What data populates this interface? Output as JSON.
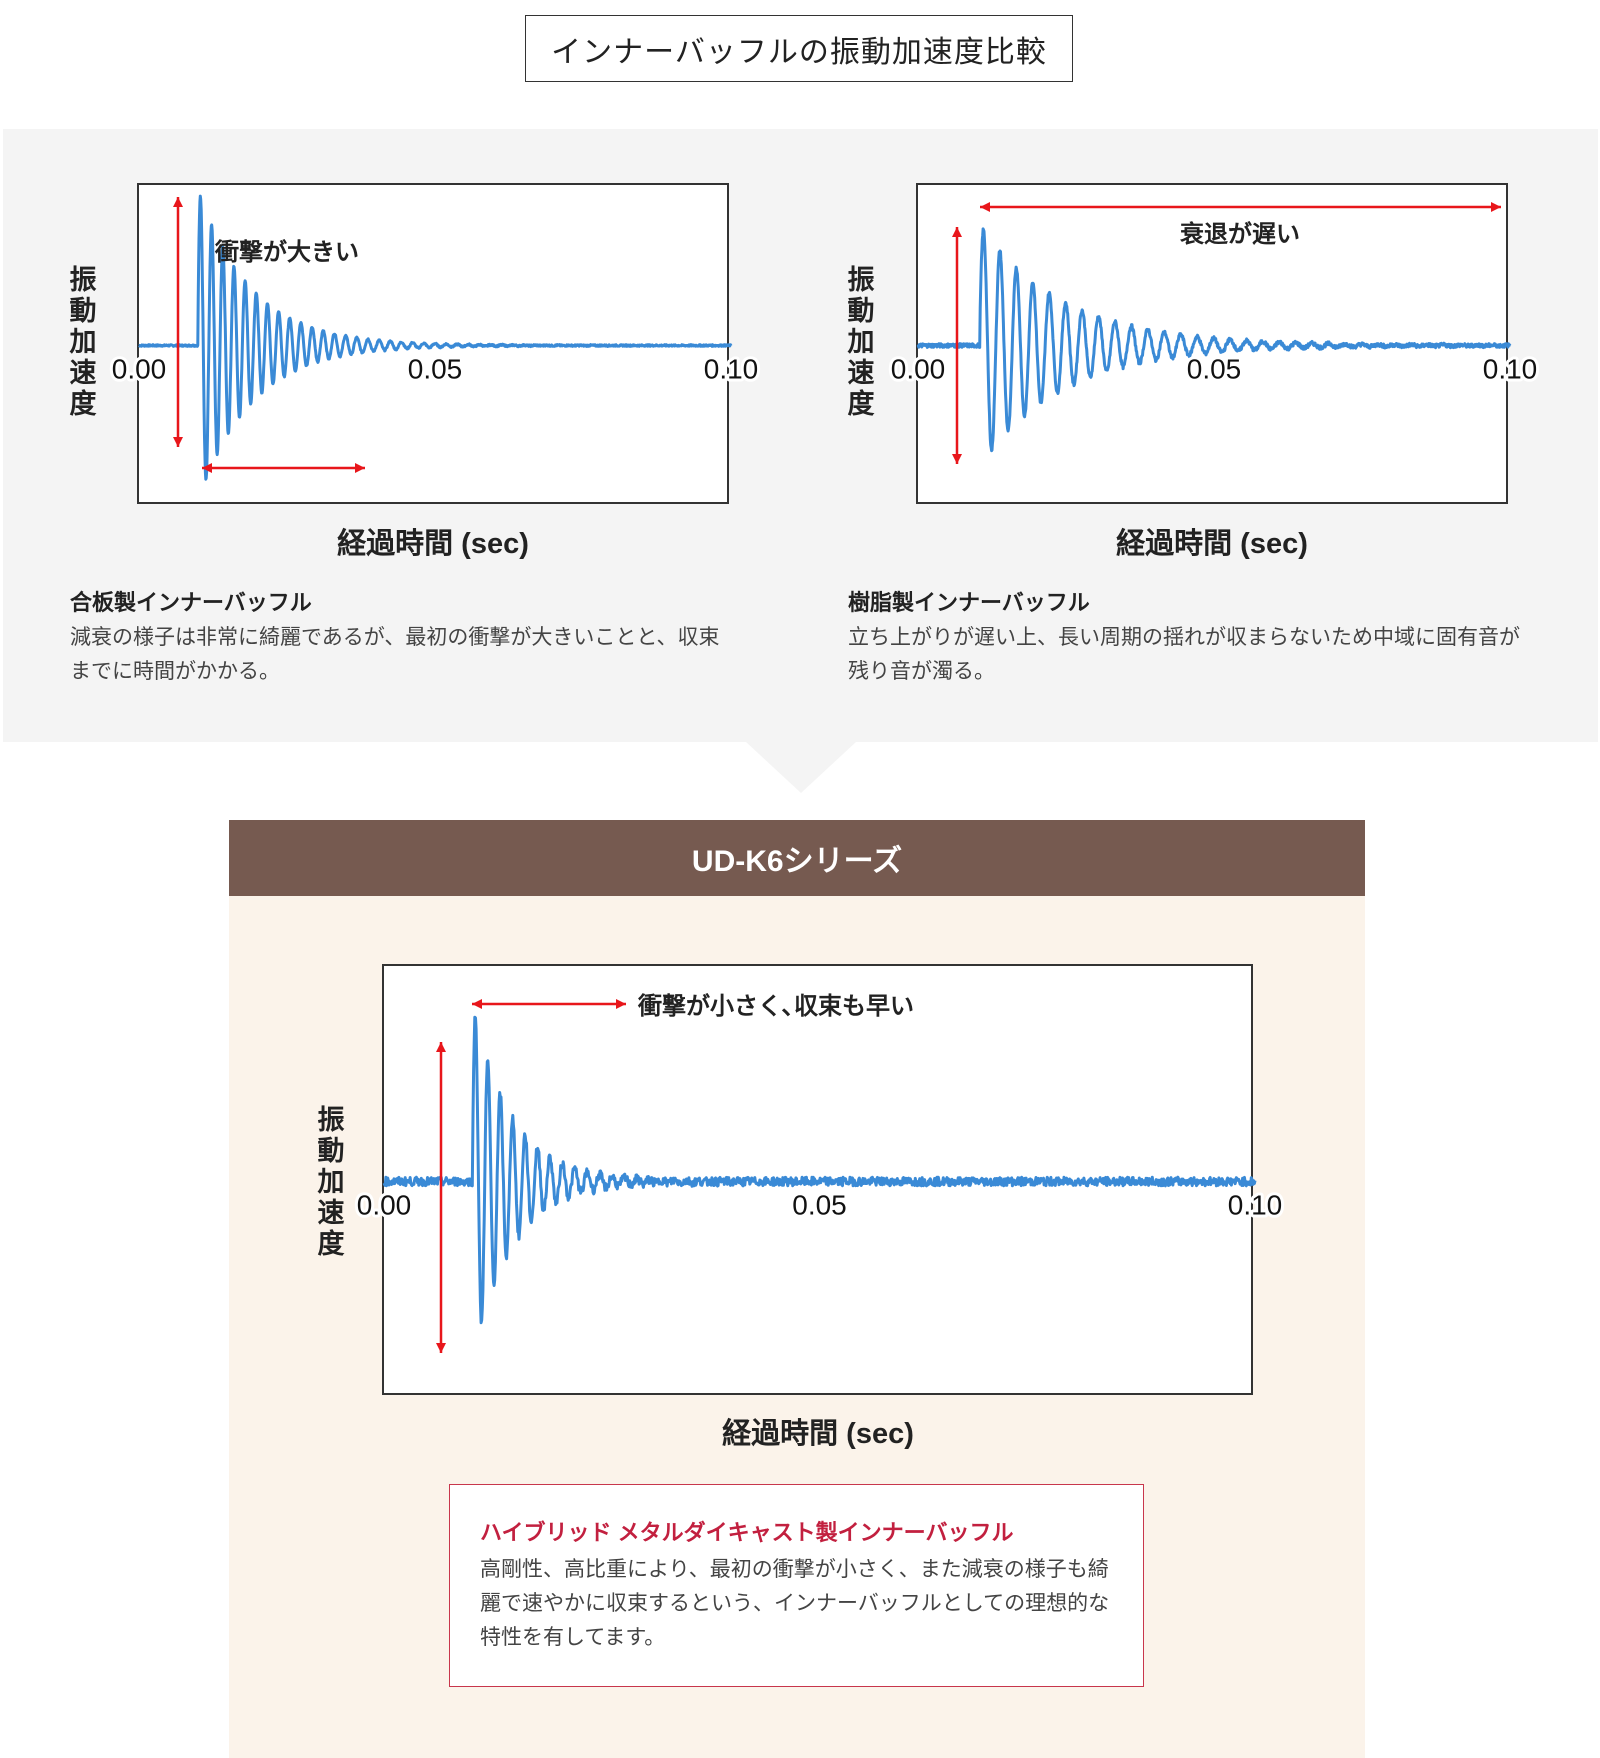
{
  "title": "インナーバッフルの振動加速度比較",
  "panels": [
    {
      "heading": "合板製インナーバッフル",
      "body": "減衰の様子は非常に綺麗であるが、最初の衝撃が大きいことと、収束までに時間がかかる。"
    },
    {
      "heading": "樹脂製インナーバッフル",
      "body": "立ち上がりが遅い上、長い周期の揺れが収まらないため中域に固有音が残り音が濁る。"
    }
  ],
  "series_header": "UD-K6シリーズ",
  "highlight": {
    "heading": "ハイブリッド メタルダイキャスト製インナーバッフル",
    "body": "高剛性、高比重により、最初の衝撃が小さく、また減衰の様子も綺麗で速やかに収束するという、インナーバッフルとしての理想的な特性を有してます。"
  },
  "colors": {
    "waveform": "#3a8ad6",
    "arrow": "#e8161b",
    "header_bg": "#765a50",
    "panel_gray": "#f4f4f4",
    "panel_cream": "#fbf3ea",
    "highlight_border": "#c8364c",
    "highlight_heading": "#c2203f"
  },
  "chart_data": [
    {
      "type": "line",
      "title": "",
      "xlabel": "経過時間 (sec)",
      "ylabel": "振動加速度",
      "xlim": [
        0,
        0.1
      ],
      "ylim": [
        -1,
        1
      ],
      "xticks": [
        "0.00",
        "0.05",
        "0.10"
      ],
      "annotation": "衝撃が大きい",
      "waveform": {
        "onset_sec": 0.01,
        "frequency_hz": 530,
        "peak_amplitude": 0.97,
        "decay_sec": 0.009,
        "noise": 0.005
      }
    },
    {
      "type": "line",
      "title": "",
      "xlabel": "経過時間 (sec)",
      "ylabel": "振動加速度",
      "xlim": [
        0,
        0.1
      ],
      "ylim": [
        -1,
        1
      ],
      "xticks": [
        "0.00",
        "0.05",
        "0.10"
      ],
      "annotation": "衰退が遅い",
      "waveform": {
        "onset_sec": 0.0105,
        "frequency_hz": 360,
        "peak_amplitude": 0.75,
        "decay_sec": 0.014,
        "noise": 0.012
      }
    },
    {
      "type": "line",
      "title": "",
      "xlabel": "経過時間 (sec)",
      "ylabel": "振動加速度",
      "xlim": [
        0,
        0.1
      ],
      "ylim": [
        -1,
        1
      ],
      "xticks": [
        "0.00",
        "0.05",
        "0.10"
      ],
      "annotation": "衝撃が小さく､収束も早い",
      "waveform": {
        "onset_sec": 0.0102,
        "frequency_hz": 700,
        "peak_amplitude": 0.82,
        "decay_sec": 0.0045,
        "noise": 0.02
      }
    }
  ]
}
